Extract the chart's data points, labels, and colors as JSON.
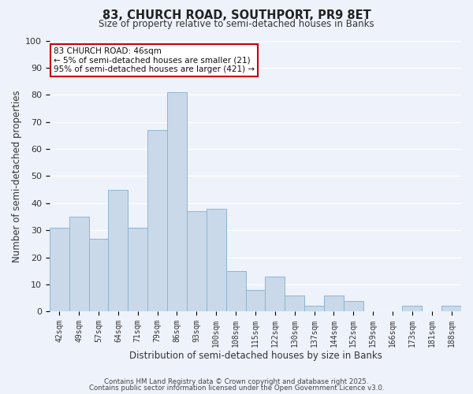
{
  "title_line1": "83, CHURCH ROAD, SOUTHPORT, PR9 8ET",
  "title_line2": "Size of property relative to semi-detached houses in Banks",
  "xlabel": "Distribution of semi-detached houses by size in Banks",
  "ylabel": "Number of semi-detached properties",
  "bar_labels": [
    "42sqm",
    "49sqm",
    "57sqm",
    "64sqm",
    "71sqm",
    "79sqm",
    "86sqm",
    "93sqm",
    "100sqm",
    "108sqm",
    "115sqm",
    "122sqm",
    "130sqm",
    "137sqm",
    "144sqm",
    "152sqm",
    "159sqm",
    "166sqm",
    "173sqm",
    "181sqm",
    "188sqm"
  ],
  "bar_values": [
    31,
    35,
    27,
    45,
    31,
    67,
    81,
    37,
    38,
    15,
    8,
    13,
    6,
    2,
    6,
    4,
    0,
    0,
    2,
    0,
    2
  ],
  "bar_color": "#c9d9ea",
  "bar_edge_color": "#8fb4d0",
  "background_color": "#eef2fb",
  "grid_color": "#ffffff",
  "ylim": [
    0,
    100
  ],
  "yticks": [
    0,
    10,
    20,
    30,
    40,
    50,
    60,
    70,
    80,
    90,
    100
  ],
  "annotation_title": "83 CHURCH ROAD: 46sqm",
  "annotation_line1": "← 5% of semi-detached houses are smaller (21)",
  "annotation_line2": "95% of semi-detached houses are larger (421) →",
  "annotation_box_color": "#ffffff",
  "annotation_box_edge": "#cc0000",
  "footnote1": "Contains HM Land Registry data © Crown copyright and database right 2025.",
  "footnote2": "Contains public sector information licensed under the Open Government Licence v3.0."
}
